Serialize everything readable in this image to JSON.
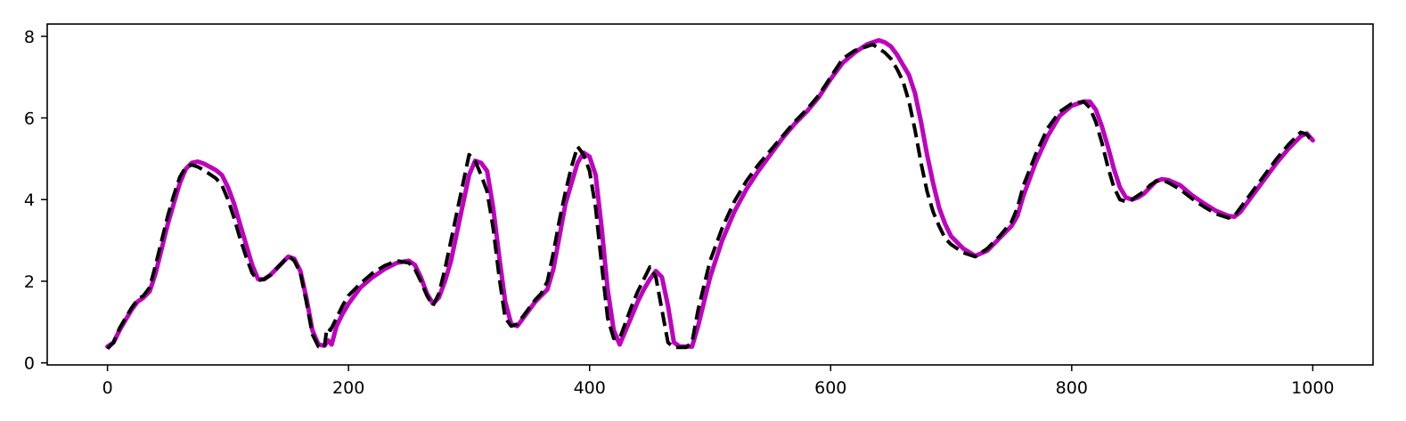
{
  "chart_data": {
    "type": "line",
    "title": "",
    "xlabel": "",
    "ylabel": "",
    "xlim": [
      -50,
      1050
    ],
    "ylim": [
      -0.05,
      8.3
    ],
    "grid": false,
    "legend": "none",
    "x_ticks": [
      0,
      200,
      400,
      600,
      800,
      1000
    ],
    "y_ticks": [
      0,
      2,
      4,
      6,
      8
    ],
    "x_tick_labels": [
      "0",
      "200",
      "400",
      "600",
      "800",
      "1000"
    ],
    "y_tick_labels": [
      "0",
      "2",
      "4",
      "6",
      "8"
    ],
    "series": [
      {
        "style": "solid",
        "color": "#c000c0",
        "points": [
          [
            0,
            0.4
          ],
          [
            5,
            0.5
          ],
          [
            10,
            0.8
          ],
          [
            15,
            1.05
          ],
          [
            20,
            1.3
          ],
          [
            25,
            1.5
          ],
          [
            30,
            1.6
          ],
          [
            35,
            1.75
          ],
          [
            40,
            2.2
          ],
          [
            45,
            2.8
          ],
          [
            50,
            3.4
          ],
          [
            55,
            3.9
          ],
          [
            60,
            4.4
          ],
          [
            65,
            4.75
          ],
          [
            70,
            4.9
          ],
          [
            75,
            4.93
          ],
          [
            80,
            4.88
          ],
          [
            85,
            4.8
          ],
          [
            90,
            4.72
          ],
          [
            95,
            4.6
          ],
          [
            100,
            4.3
          ],
          [
            105,
            3.9
          ],
          [
            110,
            3.4
          ],
          [
            115,
            2.9
          ],
          [
            120,
            2.4
          ],
          [
            125,
            2.05
          ],
          [
            130,
            2.05
          ],
          [
            135,
            2.15
          ],
          [
            140,
            2.3
          ],
          [
            145,
            2.45
          ],
          [
            150,
            2.6
          ],
          [
            155,
            2.55
          ],
          [
            160,
            2.25
          ],
          [
            165,
            1.6
          ],
          [
            170,
            0.8
          ],
          [
            175,
            0.45
          ],
          [
            180,
            0.42
          ],
          [
            183,
            0.55
          ],
          [
            186,
            0.45
          ],
          [
            190,
            0.9
          ],
          [
            195,
            1.2
          ],
          [
            200,
            1.45
          ],
          [
            210,
            1.85
          ],
          [
            220,
            2.1
          ],
          [
            230,
            2.3
          ],
          [
            240,
            2.45
          ],
          [
            250,
            2.5
          ],
          [
            255,
            2.4
          ],
          [
            260,
            2.1
          ],
          [
            265,
            1.7
          ],
          [
            270,
            1.45
          ],
          [
            275,
            1.6
          ],
          [
            280,
            2.0
          ],
          [
            285,
            2.5
          ],
          [
            290,
            3.2
          ],
          [
            295,
            3.9
          ],
          [
            300,
            4.6
          ],
          [
            305,
            4.95
          ],
          [
            310,
            4.9
          ],
          [
            315,
            4.7
          ],
          [
            320,
            3.8
          ],
          [
            325,
            2.6
          ],
          [
            330,
            1.5
          ],
          [
            335,
            0.95
          ],
          [
            340,
            0.9
          ],
          [
            345,
            1.1
          ],
          [
            350,
            1.3
          ],
          [
            355,
            1.5
          ],
          [
            360,
            1.65
          ],
          [
            365,
            1.8
          ],
          [
            370,
            2.3
          ],
          [
            375,
            3.1
          ],
          [
            380,
            3.9
          ],
          [
            385,
            4.4
          ],
          [
            390,
            4.9
          ],
          [
            395,
            5.15
          ],
          [
            400,
            5.05
          ],
          [
            405,
            4.6
          ],
          [
            410,
            3.3
          ],
          [
            415,
            1.8
          ],
          [
            420,
            0.8
          ],
          [
            425,
            0.45
          ],
          [
            430,
            0.8
          ],
          [
            435,
            1.15
          ],
          [
            440,
            1.5
          ],
          [
            445,
            1.8
          ],
          [
            450,
            2.05
          ],
          [
            455,
            2.25
          ],
          [
            460,
            2.1
          ],
          [
            465,
            1.4
          ],
          [
            470,
            0.5
          ],
          [
            475,
            0.4
          ],
          [
            480,
            0.4
          ],
          [
            485,
            0.4
          ],
          [
            490,
            0.9
          ],
          [
            495,
            1.5
          ],
          [
            500,
            2.1
          ],
          [
            510,
            3.0
          ],
          [
            520,
            3.7
          ],
          [
            530,
            4.25
          ],
          [
            540,
            4.7
          ],
          [
            550,
            5.1
          ],
          [
            560,
            5.5
          ],
          [
            570,
            5.85
          ],
          [
            580,
            6.15
          ],
          [
            590,
            6.5
          ],
          [
            600,
            6.95
          ],
          [
            610,
            7.35
          ],
          [
            620,
            7.6
          ],
          [
            630,
            7.8
          ],
          [
            640,
            7.9
          ],
          [
            645,
            7.85
          ],
          [
            650,
            7.75
          ],
          [
            655,
            7.55
          ],
          [
            660,
            7.3
          ],
          [
            665,
            7.05
          ],
          [
            670,
            6.6
          ],
          [
            675,
            5.9
          ],
          [
            680,
            5.1
          ],
          [
            685,
            4.4
          ],
          [
            690,
            3.8
          ],
          [
            695,
            3.4
          ],
          [
            700,
            3.1
          ],
          [
            710,
            2.8
          ],
          [
            720,
            2.62
          ],
          [
            730,
            2.75
          ],
          [
            740,
            3.05
          ],
          [
            750,
            3.35
          ],
          [
            755,
            3.6
          ],
          [
            760,
            4.1
          ],
          [
            770,
            4.9
          ],
          [
            780,
            5.55
          ],
          [
            790,
            6.05
          ],
          [
            800,
            6.3
          ],
          [
            810,
            6.4
          ],
          [
            815,
            6.4
          ],
          [
            820,
            6.2
          ],
          [
            825,
            5.8
          ],
          [
            830,
            5.3
          ],
          [
            835,
            4.75
          ],
          [
            840,
            4.3
          ],
          [
            845,
            4.05
          ],
          [
            850,
            4.0
          ],
          [
            855,
            4.05
          ],
          [
            860,
            4.15
          ],
          [
            865,
            4.3
          ],
          [
            870,
            4.45
          ],
          [
            875,
            4.5
          ],
          [
            880,
            4.48
          ],
          [
            890,
            4.35
          ],
          [
            900,
            4.1
          ],
          [
            910,
            3.9
          ],
          [
            920,
            3.72
          ],
          [
            930,
            3.6
          ],
          [
            935,
            3.58
          ],
          [
            940,
            3.7
          ],
          [
            950,
            4.1
          ],
          [
            960,
            4.5
          ],
          [
            970,
            4.9
          ],
          [
            980,
            5.25
          ],
          [
            990,
            5.55
          ],
          [
            995,
            5.62
          ],
          [
            1000,
            5.45
          ]
        ]
      },
      {
        "style": "dashed",
        "color": "#000000",
        "points": [
          [
            0,
            0.35
          ],
          [
            5,
            0.5
          ],
          [
            10,
            0.85
          ],
          [
            15,
            1.1
          ],
          [
            20,
            1.35
          ],
          [
            25,
            1.55
          ],
          [
            30,
            1.65
          ],
          [
            35,
            1.85
          ],
          [
            40,
            2.4
          ],
          [
            45,
            3.0
          ],
          [
            50,
            3.6
          ],
          [
            55,
            4.1
          ],
          [
            60,
            4.55
          ],
          [
            65,
            4.8
          ],
          [
            70,
            4.85
          ],
          [
            75,
            4.8
          ],
          [
            80,
            4.72
          ],
          [
            85,
            4.62
          ],
          [
            90,
            4.52
          ],
          [
            95,
            4.35
          ],
          [
            100,
            4.0
          ],
          [
            105,
            3.55
          ],
          [
            110,
            3.05
          ],
          [
            115,
            2.6
          ],
          [
            120,
            2.2
          ],
          [
            125,
            2.02
          ],
          [
            130,
            2.05
          ],
          [
            135,
            2.15
          ],
          [
            140,
            2.3
          ],
          [
            145,
            2.45
          ],
          [
            150,
            2.62
          ],
          [
            155,
            2.5
          ],
          [
            160,
            2.2
          ],
          [
            165,
            1.5
          ],
          [
            170,
            0.7
          ],
          [
            175,
            0.4
          ],
          [
            180,
            0.38
          ],
          [
            182,
            0.85
          ],
          [
            185,
            0.8
          ],
          [
            190,
            1.1
          ],
          [
            195,
            1.4
          ],
          [
            200,
            1.65
          ],
          [
            210,
            1.95
          ],
          [
            220,
            2.2
          ],
          [
            230,
            2.38
          ],
          [
            240,
            2.5
          ],
          [
            250,
            2.45
          ],
          [
            255,
            2.3
          ],
          [
            260,
            2.0
          ],
          [
            265,
            1.65
          ],
          [
            270,
            1.4
          ],
          [
            275,
            1.7
          ],
          [
            280,
            2.3
          ],
          [
            285,
            3.0
          ],
          [
            290,
            3.7
          ],
          [
            295,
            4.4
          ],
          [
            300,
            5.1
          ],
          [
            305,
            4.95
          ],
          [
            310,
            4.6
          ],
          [
            315,
            4.2
          ],
          [
            320,
            3.3
          ],
          [
            325,
            2.1
          ],
          [
            330,
            1.1
          ],
          [
            335,
            0.9
          ],
          [
            340,
            0.95
          ],
          [
            345,
            1.15
          ],
          [
            350,
            1.35
          ],
          [
            355,
            1.55
          ],
          [
            360,
            1.7
          ],
          [
            365,
            2.0
          ],
          [
            370,
            2.7
          ],
          [
            375,
            3.5
          ],
          [
            380,
            4.2
          ],
          [
            385,
            4.8
          ],
          [
            390,
            5.3
          ],
          [
            395,
            5.1
          ],
          [
            400,
            4.7
          ],
          [
            405,
            3.8
          ],
          [
            410,
            2.4
          ],
          [
            415,
            1.1
          ],
          [
            420,
            0.6
          ],
          [
            425,
            0.6
          ],
          [
            430,
            1.0
          ],
          [
            435,
            1.4
          ],
          [
            440,
            1.75
          ],
          [
            445,
            2.05
          ],
          [
            450,
            2.35
          ],
          [
            455,
            2.1
          ],
          [
            460,
            1.3
          ],
          [
            465,
            0.5
          ],
          [
            470,
            0.38
          ],
          [
            475,
            0.38
          ],
          [
            480,
            0.38
          ],
          [
            485,
            0.5
          ],
          [
            490,
            1.3
          ],
          [
            495,
            1.9
          ],
          [
            500,
            2.5
          ],
          [
            510,
            3.3
          ],
          [
            520,
            3.95
          ],
          [
            530,
            4.45
          ],
          [
            540,
            4.85
          ],
          [
            550,
            5.2
          ],
          [
            560,
            5.55
          ],
          [
            570,
            5.9
          ],
          [
            580,
            6.2
          ],
          [
            590,
            6.55
          ],
          [
            600,
            7.0
          ],
          [
            610,
            7.45
          ],
          [
            620,
            7.65
          ],
          [
            630,
            7.75
          ],
          [
            635,
            7.8
          ],
          [
            640,
            7.7
          ],
          [
            645,
            7.6
          ],
          [
            650,
            7.45
          ],
          [
            655,
            7.2
          ],
          [
            660,
            6.9
          ],
          [
            665,
            6.4
          ],
          [
            670,
            5.7
          ],
          [
            675,
            4.9
          ],
          [
            680,
            4.2
          ],
          [
            685,
            3.7
          ],
          [
            690,
            3.35
          ],
          [
            695,
            3.05
          ],
          [
            700,
            2.9
          ],
          [
            710,
            2.7
          ],
          [
            720,
            2.6
          ],
          [
            730,
            2.8
          ],
          [
            740,
            3.1
          ],
          [
            750,
            3.45
          ],
          [
            755,
            3.8
          ],
          [
            760,
            4.35
          ],
          [
            770,
            5.1
          ],
          [
            780,
            5.75
          ],
          [
            790,
            6.15
          ],
          [
            800,
            6.35
          ],
          [
            810,
            6.4
          ],
          [
            815,
            6.25
          ],
          [
            820,
            5.9
          ],
          [
            825,
            5.4
          ],
          [
            830,
            4.8
          ],
          [
            835,
            4.3
          ],
          [
            840,
            4.0
          ],
          [
            845,
            3.95
          ],
          [
            850,
            4.0
          ],
          [
            855,
            4.1
          ],
          [
            860,
            4.2
          ],
          [
            865,
            4.35
          ],
          [
            870,
            4.45
          ],
          [
            875,
            4.48
          ],
          [
            880,
            4.42
          ],
          [
            890,
            4.25
          ],
          [
            900,
            4.02
          ],
          [
            910,
            3.82
          ],
          [
            920,
            3.65
          ],
          [
            930,
            3.55
          ],
          [
            935,
            3.6
          ],
          [
            940,
            3.8
          ],
          [
            950,
            4.2
          ],
          [
            960,
            4.6
          ],
          [
            970,
            5.0
          ],
          [
            980,
            5.35
          ],
          [
            990,
            5.65
          ],
          [
            995,
            5.6
          ],
          [
            1000,
            5.4
          ]
        ]
      }
    ]
  }
}
